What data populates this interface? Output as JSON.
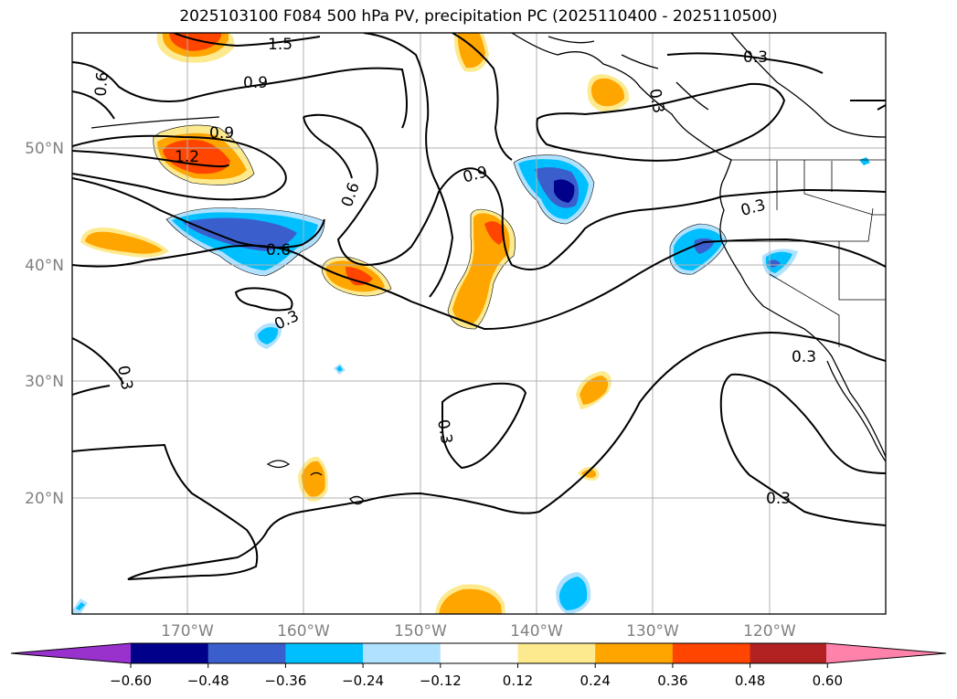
{
  "title": "2025103100 F084 500 hPa PV, precipitation PC (2025110400 - 2025110500)",
  "axes": {
    "lon_labels": [
      "170°W",
      "160°W",
      "150°W",
      "140°W",
      "130°W",
      "120°W"
    ],
    "lat_labels": [
      "50°N",
      "40°N",
      "30°N",
      "20°N"
    ]
  },
  "colorbar": {
    "colors": [
      "#9932cc",
      "#00008b",
      "#3a5fcd",
      "#00bfff",
      "#b0e2ff",
      "#ffffff",
      "#fdea8f",
      "#ffa500",
      "#ff4500",
      "#b22222",
      "#ff82ab"
    ],
    "tick_labels": [
      "−0.60",
      "−0.48",
      "−0.36",
      "−0.24",
      "−0.12",
      "0.12",
      "0.24",
      "0.36",
      "0.48",
      "0.60"
    ]
  },
  "contour_labels": [
    "1.5",
    "0.9",
    "0.6",
    "0.9",
    "1.2",
    "0.6",
    "0.6",
    "0.9",
    "0.3",
    "0.3",
    "0.3",
    "0.3",
    "0.3",
    "0.3",
    "0.3",
    "0.3"
  ]
}
